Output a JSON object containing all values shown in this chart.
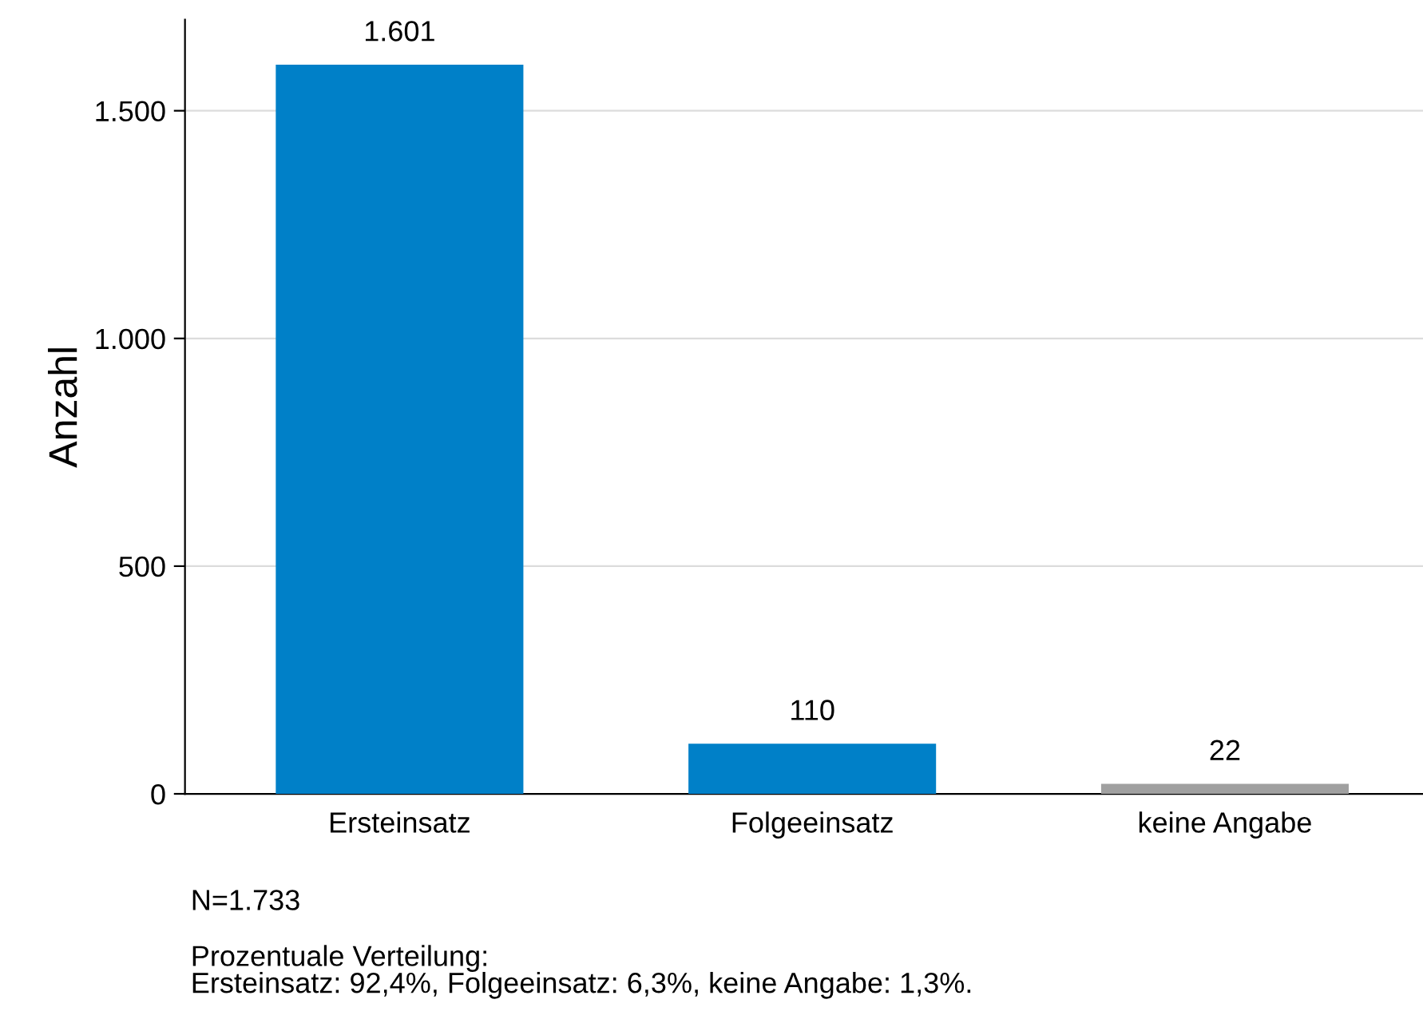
{
  "chart_data": {
    "type": "bar",
    "ylabel": "Anzahl",
    "categories": [
      "Ersteinsatz",
      "Folgeeinsatz",
      "keine Angabe"
    ],
    "values": [
      1601,
      110,
      22
    ],
    "colors": [
      "#0080c8",
      "#0080c8",
      "#a0a0a0"
    ],
    "value_labels": [
      "1.601",
      "110",
      "22"
    ],
    "ylim": [
      0,
      1700
    ],
    "yticks": [
      0,
      {
        "value": 500,
        "label": "500"
      },
      {
        "value": 1000,
        "label": "1.000"
      },
      {
        "value": 1500,
        "label": "1.500"
      }
    ],
    "grid": "y",
    "legend": false,
    "annotations": [
      "N=1.733",
      "Prozentuale Verteilung:\nErsteinsatz: 92,4%, Folgeeinsatz: 6,3%, keine Angabe: 1,3%."
    ]
  }
}
